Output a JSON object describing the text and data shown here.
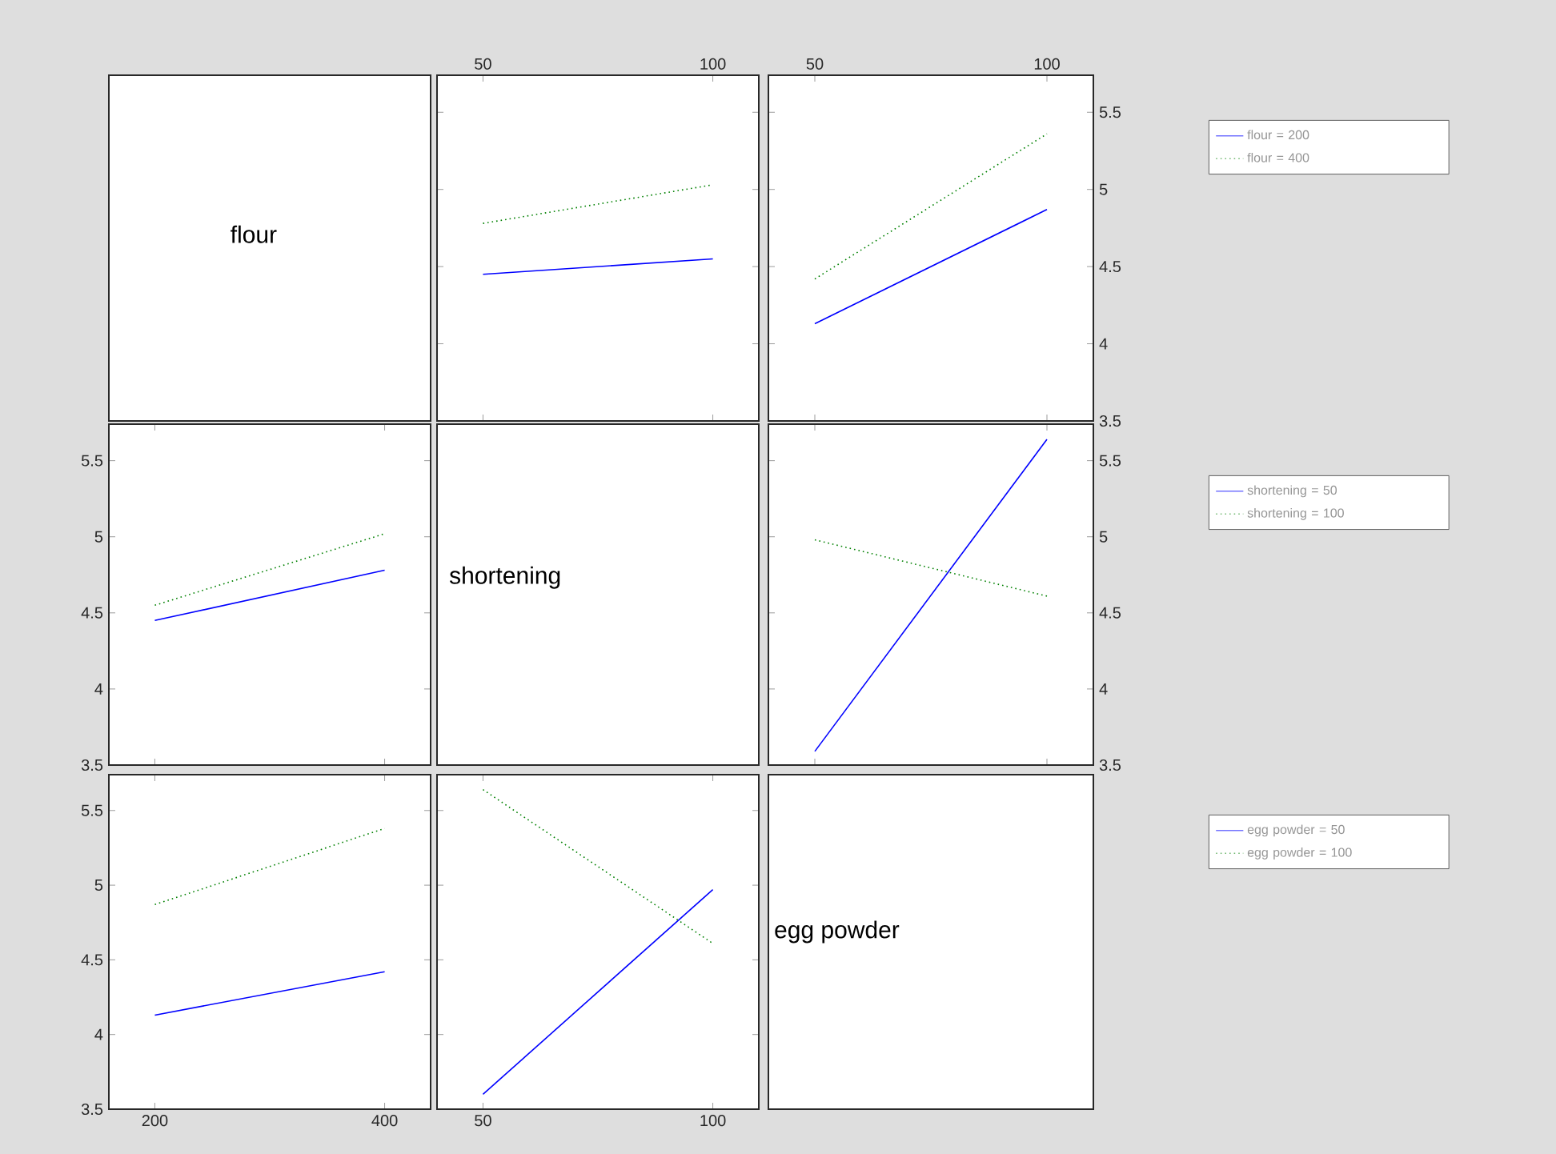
{
  "chart_data": [
    {
      "type": "other",
      "title": "flour"
    },
    {
      "type": "line",
      "x": [
        50,
        100
      ],
      "xlim": [
        40,
        110
      ],
      "ylim": [
        3.5,
        5.74
      ],
      "xticks": [
        50,
        100
      ],
      "yticks": [
        3.5,
        4,
        4.5,
        5,
        5.5
      ],
      "tick_labels": "x",
      "series": [
        {
          "color": "#0000ff",
          "line_style": "solid",
          "values": [
            4.45,
            4.55
          ]
        },
        {
          "color": "#008000",
          "line_style": "dotted",
          "values": [
            4.78,
            5.03
          ]
        }
      ]
    },
    {
      "type": "line",
      "x": [
        50,
        100
      ],
      "xlim": [
        40,
        110
      ],
      "ylim": [
        3.5,
        5.74
      ],
      "xticks": [
        50,
        100
      ],
      "yticks": [
        3.5,
        4,
        4.5,
        5,
        5.5
      ],
      "legend": "right",
      "series": [
        {
          "name": "flour = 200",
          "color": "#0000ff",
          "line_style": "solid",
          "values": [
            4.13,
            4.87
          ]
        },
        {
          "name": "flour = 400",
          "color": "#008000",
          "line_style": "dotted",
          "values": [
            4.42,
            5.36
          ]
        }
      ]
    },
    {
      "type": "line",
      "x": [
        200,
        400
      ],
      "xlim": [
        160,
        440
      ],
      "ylim": [
        3.5,
        5.74
      ],
      "xticks": [
        200,
        400
      ],
      "yticks": [
        3.5,
        4,
        4.5,
        5,
        5.5
      ],
      "tick_labels": "y",
      "series": [
        {
          "color": "#0000ff",
          "line_style": "solid",
          "values": [
            4.45,
            4.78
          ]
        },
        {
          "color": "#008000",
          "line_style": "dotted",
          "values": [
            4.55,
            5.02
          ]
        }
      ]
    },
    {
      "type": "other",
      "title": "shortening"
    },
    {
      "type": "line",
      "x": [
        50,
        100
      ],
      "xlim": [
        40,
        110
      ],
      "ylim": [
        3.5,
        5.74
      ],
      "xticks": [
        50,
        100
      ],
      "yticks": [
        3.5,
        4,
        4.5,
        5,
        5.5
      ],
      "tick_labels": "y",
      "legend": "right",
      "series": [
        {
          "name": "shortening = 50",
          "color": "#0000ff",
          "line_style": "solid",
          "values": [
            3.59,
            5.64
          ]
        },
        {
          "name": "shortening = 100",
          "color": "#008000",
          "line_style": "dotted",
          "values": [
            4.98,
            4.61
          ]
        }
      ]
    },
    {
      "type": "line",
      "x": [
        200,
        400
      ],
      "xlim": [
        160,
        440
      ],
      "ylim": [
        3.5,
        5.74
      ],
      "xticks": [
        200,
        400
      ],
      "yticks": [
        3.5,
        4,
        4.5,
        5,
        5.5
      ],
      "series": [
        {
          "color": "#0000ff",
          "line_style": "solid",
          "values": [
            4.13,
            4.42
          ]
        },
        {
          "color": "#008000",
          "line_style": "dotted",
          "values": [
            4.87,
            5.38
          ]
        }
      ]
    },
    {
      "type": "line",
      "x": [
        50,
        100
      ],
      "xlim": [
        40,
        110
      ],
      "ylim": [
        3.5,
        5.74
      ],
      "xticks": [
        50,
        100
      ],
      "yticks": [
        3.5,
        4,
        4.5,
        5,
        5.5
      ],
      "tick_labels": "x",
      "legend": "right",
      "series": [
        {
          "name": "egg powder = 50",
          "color": "#0000ff",
          "line_style": "solid",
          "values": [
            3.6,
            4.97
          ]
        },
        {
          "name": "egg powder = 100",
          "color": "#008000",
          "line_style": "dotted",
          "values": [
            5.64,
            4.61
          ]
        }
      ]
    },
    {
      "type": "other",
      "title": "egg powder"
    }
  ]
}
